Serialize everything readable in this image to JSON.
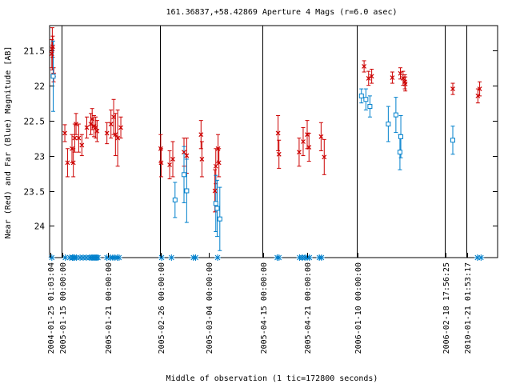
{
  "chart_data": {
    "type": "scatter",
    "title": "161.36837,+58.42869   Aperture 4 Mags (r=6.0 asec)",
    "xlabel": "Middle of observation (1 tic=172800 seconds)",
    "ylabel": "Near (Red) and Far (Blue) Magnitude [AB]",
    "ylim": [
      24.45,
      21.15
    ],
    "y_ticks": [
      21.5,
      22,
      22.5,
      23,
      23.5,
      24
    ],
    "y_tick_labels": [
      "21.5",
      "22",
      "22.5",
      "23",
      "23.5",
      "24"
    ],
    "x_domain": [
      0,
      100
    ],
    "segments": [
      {
        "start": 0,
        "end": 2.6,
        "label": "2004-01-25 01:03:04"
      },
      {
        "start": 2.6,
        "end": 24.6,
        "label": "2005-01-15 00:00:00",
        "mid_label": "2005-01-21 00:00:00"
      },
      {
        "start": 24.6,
        "end": 47.5,
        "label": "2005-02-26 00:00:00",
        "mid_label": "2005-03-04 00:00:00"
      },
      {
        "start": 47.5,
        "end": 68.5,
        "label": "2005-04-15 00:00:00",
        "mid_label": "2005-04-21 00:00:00"
      },
      {
        "start": 68.5,
        "end": 88.2,
        "label": "2006-01-10 00:00:00"
      },
      {
        "start": 88.2,
        "end": 93.0,
        "label": "2006-02-18 17:56:25"
      },
      {
        "start": 93.0,
        "end": 100,
        "label": "2010-01-21 01:53:17"
      }
    ],
    "series": [
      {
        "color": "#cc0000",
        "marker": "x",
        "points": [
          [
            0.5,
            21.55,
            0.2
          ],
          [
            0.6,
            21.48,
            0.3
          ],
          [
            0.7,
            21.45,
            0.15
          ],
          [
            0.9,
            21.85,
            0.1
          ],
          [
            3.4,
            22.68,
            0.12
          ],
          [
            4.0,
            23.1,
            0.2
          ],
          [
            5.0,
            22.9,
            0.2
          ],
          [
            5.3,
            23.1,
            0.2
          ],
          [
            5.6,
            22.75,
            0.2
          ],
          [
            5.9,
            22.55,
            0.15
          ],
          [
            6.5,
            22.75,
            0.2
          ],
          [
            7.2,
            22.85,
            0.15
          ],
          [
            8.3,
            22.6,
            0.15
          ],
          [
            9.2,
            22.55,
            0.15
          ],
          [
            9.5,
            22.48,
            0.15
          ],
          [
            9.9,
            22.58,
            0.15
          ],
          [
            10.3,
            22.6,
            0.15
          ],
          [
            10.6,
            22.65,
            0.15
          ],
          [
            12.8,
            22.68,
            0.15
          ],
          [
            13.7,
            22.55,
            0.2
          ],
          [
            14.3,
            22.45,
            0.25
          ],
          [
            14.7,
            22.7,
            0.3
          ],
          [
            15.2,
            22.75,
            0.4
          ],
          [
            15.9,
            22.6,
            0.15
          ],
          [
            24.8,
            22.9,
            0.2
          ],
          [
            24.9,
            23.1,
            0.2
          ],
          [
            26.8,
            23.13,
            0.2
          ],
          [
            27.5,
            23.05,
            0.25
          ],
          [
            30.0,
            22.95,
            0.2
          ],
          [
            30.6,
            23.0,
            0.25
          ],
          [
            33.8,
            22.7,
            0.2
          ],
          [
            34.0,
            23.05,
            0.25
          ],
          [
            36.9,
            23.5,
            0.3
          ],
          [
            37.1,
            23.15,
            0.25
          ],
          [
            37.6,
            22.9,
            0.2
          ],
          [
            37.8,
            23.1,
            0.2
          ],
          [
            51.0,
            22.68,
            0.25
          ],
          [
            51.2,
            22.98,
            0.2
          ],
          [
            55.7,
            22.95,
            0.2
          ],
          [
            56.6,
            22.8,
            0.2
          ],
          [
            57.5,
            22.7,
            0.2
          ],
          [
            57.9,
            22.88,
            0.2
          ],
          [
            60.6,
            22.73,
            0.2
          ],
          [
            61.3,
            23.02,
            0.25
          ],
          [
            70.2,
            21.73,
            0.08
          ],
          [
            71.2,
            21.9,
            0.1
          ],
          [
            71.9,
            21.87,
            0.1
          ],
          [
            76.5,
            21.89,
            0.08
          ],
          [
            78.3,
            21.83,
            0.08
          ],
          [
            78.9,
            21.9,
            0.1
          ],
          [
            79.3,
            21.95,
            0.1
          ],
          [
            79.4,
            21.98,
            0.1
          ],
          [
            90.0,
            22.05,
            0.08
          ],
          [
            95.6,
            22.15,
            0.1
          ],
          [
            96.0,
            22.05,
            0.1
          ]
        ]
      },
      {
        "color": "#0080cc",
        "marker": "square",
        "points": [
          [
            0.8,
            21.87,
            0.5
          ],
          [
            69.6,
            22.15,
            0.1
          ],
          [
            70.6,
            22.2,
            0.15
          ],
          [
            71.5,
            22.3,
            0.15
          ],
          [
            75.6,
            22.55,
            0.25
          ],
          [
            77.3,
            22.42,
            0.25
          ],
          [
            78.2,
            22.95,
            0.25
          ],
          [
            78.4,
            22.73,
            0.3
          ],
          [
            28.0,
            23.63,
            0.25
          ],
          [
            30.0,
            23.27,
            0.4
          ],
          [
            30.6,
            23.5,
            0.45
          ],
          [
            37.1,
            23.68,
            0.4
          ],
          [
            37.4,
            23.75,
            0.4
          ],
          [
            38.0,
            23.9,
            0.45
          ],
          [
            90.0,
            22.78,
            0.2
          ]
        ]
      }
    ],
    "observation_marks": [
      0.5,
      3.5,
      4.5,
      5.1,
      5.3,
      5.6,
      6.0,
      6.8,
      7.5,
      8.2,
      8.9,
      9.3,
      9.6,
      9.9,
      10.2,
      10.5,
      10.8,
      12.8,
      13.6,
      14.1,
      14.6,
      15.1,
      15.5,
      25.0,
      27.2,
      32.1,
      32.6,
      37.5,
      50.8,
      51.2,
      55.8,
      56.4,
      57.0,
      57.5,
      58.0,
      60.2,
      60.7,
      95.5,
      96.3
    ],
    "grid": false
  }
}
